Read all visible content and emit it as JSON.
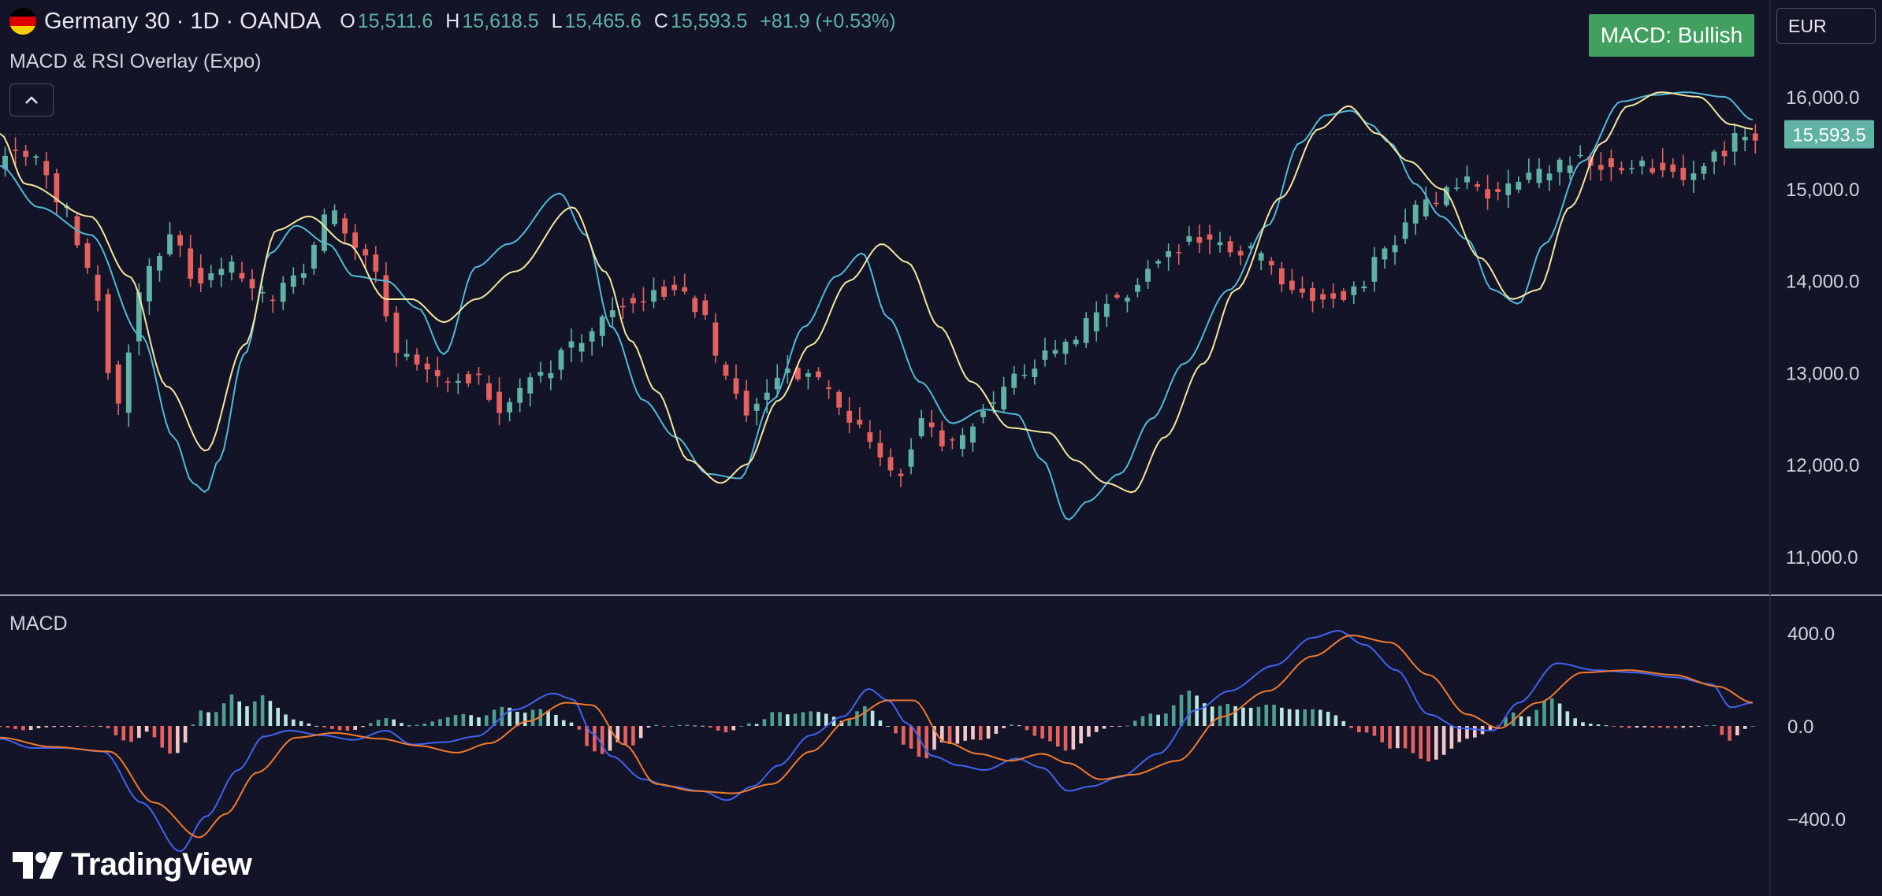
{
  "header": {
    "symbol": "Germany 30 · 1D · OANDA",
    "open_label": "O",
    "open": "15,511.6",
    "high_label": "H",
    "high": "15,618.5",
    "low_label": "L",
    "low": "15,465.6",
    "close_label": "C",
    "close": "15,593.5",
    "change": "+81.9 (+0.53%)",
    "flag_colors": [
      "#000000",
      "#dd0000",
      "#ffce00"
    ]
  },
  "indicator_name": "MACD & RSI Overlay (Expo)",
  "collapse_icon": "chevron-up-icon",
  "macd_label": "MACD",
  "status_badge": "MACD: Bullish",
  "currency": "EUR",
  "price_tag": "15,593.5",
  "brand": "TradingView",
  "colors": {
    "background": "#131427",
    "up": "#5fb2a4",
    "down": "#e4615f",
    "rsi_fast": "#52b9d8",
    "rsi_slow": "#f5e6a0",
    "macd_line": "#3f63f0",
    "signal_line": "#f07a2e",
    "hist_up_strong": "#4f9e8f",
    "hist_up_weak": "#b9e6dd",
    "hist_down_strong": "#e4615f",
    "hist_down_weak": "#f5c6c8",
    "badge": "#41a05f",
    "price_tag_bg": "#5fb2a4"
  },
  "chart_data": [
    {
      "type": "candlestick",
      "title": "Germany 30 · 1D · OANDA",
      "y_ticks": [
        "16,000.0",
        "15,000.0",
        "14,000.0",
        "13,000.0",
        "12,000.0",
        "11,000.0"
      ],
      "y_tick_values": [
        16000,
        15000,
        14000,
        13000,
        12000,
        11000
      ],
      "ylim": [
        10600,
        16700
      ],
      "close_anchors": [
        [
          0,
          15150
        ],
        [
          10,
          15450
        ],
        [
          28,
          15350
        ],
        [
          55,
          14750
        ],
        [
          75,
          14100
        ],
        [
          95,
          12600
        ],
        [
          105,
          13300
        ],
        [
          115,
          14000
        ],
        [
          135,
          14450
        ],
        [
          160,
          14000
        ],
        [
          185,
          14150
        ],
        [
          210,
          13800
        ],
        [
          240,
          14100
        ],
        [
          260,
          14700
        ],
        [
          290,
          14300
        ],
        [
          315,
          13150
        ],
        [
          345,
          12900
        ],
        [
          370,
          12950
        ],
        [
          395,
          12600
        ],
        [
          420,
          12950
        ],
        [
          450,
          13300
        ],
        [
          490,
          13750
        ],
        [
          520,
          13900
        ],
        [
          545,
          13750
        ],
        [
          565,
          13000
        ],
        [
          585,
          12600
        ],
        [
          615,
          13050
        ],
        [
          640,
          12900
        ],
        [
          660,
          12550
        ],
        [
          680,
          12250
        ],
        [
          700,
          11850
        ],
        [
          720,
          12450
        ],
        [
          745,
          12200
        ],
        [
          770,
          12600
        ],
        [
          790,
          12900
        ],
        [
          830,
          13300
        ],
        [
          870,
          13800
        ],
        [
          910,
          14300
        ],
        [
          935,
          14450
        ],
        [
          965,
          14350
        ],
        [
          990,
          14200
        ],
        [
          1010,
          13900
        ],
        [
          1030,
          13850
        ],
        [
          1050,
          13800
        ],
        [
          1080,
          14300
        ],
        [
          1110,
          14800
        ],
        [
          1140,
          15050
        ],
        [
          1170,
          14950
        ],
        [
          1200,
          15150
        ],
        [
          1230,
          15300
        ],
        [
          1260,
          15250
        ],
        [
          1290,
          15250
        ],
        [
          1317,
          15150
        ],
        [
          1340,
          15420
        ],
        [
          1362,
          15593.5
        ]
      ],
      "rsi_fast_anchors": [
        [
          0,
          15250
        ],
        [
          30,
          14800
        ],
        [
          70,
          14500
        ],
        [
          110,
          13400
        ],
        [
          135,
          12300
        ],
        [
          150,
          11800
        ],
        [
          160,
          11700
        ],
        [
          170,
          12050
        ],
        [
          190,
          13200
        ],
        [
          210,
          14300
        ],
        [
          230,
          14600
        ],
        [
          255,
          14400
        ],
        [
          275,
          14050
        ],
        [
          300,
          14000
        ],
        [
          325,
          13700
        ],
        [
          345,
          13200
        ],
        [
          370,
          14150
        ],
        [
          395,
          14400
        ],
        [
          435,
          14950
        ],
        [
          455,
          14500
        ],
        [
          475,
          13500
        ],
        [
          500,
          12700
        ],
        [
          525,
          12300
        ],
        [
          550,
          11900
        ],
        [
          575,
          11850
        ],
        [
          600,
          12700
        ],
        [
          625,
          13500
        ],
        [
          650,
          14050
        ],
        [
          670,
          14300
        ],
        [
          690,
          13600
        ],
        [
          715,
          12900
        ],
        [
          740,
          12450
        ],
        [
          765,
          12600
        ],
        [
          790,
          12550
        ],
        [
          810,
          12050
        ],
        [
          830,
          11400
        ],
        [
          845,
          11600
        ],
        [
          870,
          11900
        ],
        [
          895,
          12500
        ],
        [
          920,
          13100
        ],
        [
          955,
          13900
        ],
        [
          985,
          14600
        ],
        [
          1010,
          15500
        ],
        [
          1030,
          15800
        ],
        [
          1050,
          15850
        ],
        [
          1065,
          15700
        ],
        [
          1080,
          15500
        ],
        [
          1100,
          15050
        ],
        [
          1120,
          14700
        ],
        [
          1140,
          14450
        ],
        [
          1160,
          13900
        ],
        [
          1180,
          13750
        ],
        [
          1200,
          14400
        ],
        [
          1230,
          15300
        ],
        [
          1260,
          15950
        ],
        [
          1285,
          16020
        ],
        [
          1310,
          16050
        ],
        [
          1340,
          16000
        ],
        [
          1362,
          15750
        ]
      ],
      "rsi_slow_anchors": [
        [
          0,
          15600
        ],
        [
          20,
          15050
        ],
        [
          70,
          14700
        ],
        [
          100,
          14050
        ],
        [
          130,
          12850
        ],
        [
          160,
          12150
        ],
        [
          190,
          13300
        ],
        [
          215,
          14550
        ],
        [
          240,
          14700
        ],
        [
          270,
          14400
        ],
        [
          300,
          13800
        ],
        [
          320,
          13800
        ],
        [
          345,
          13550
        ],
        [
          370,
          13800
        ],
        [
          400,
          14100
        ],
        [
          445,
          14800
        ],
        [
          470,
          14100
        ],
        [
          490,
          13350
        ],
        [
          510,
          12800
        ],
        [
          535,
          12050
        ],
        [
          560,
          11800
        ],
        [
          580,
          12000
        ],
        [
          605,
          12700
        ],
        [
          630,
          13300
        ],
        [
          660,
          14000
        ],
        [
          685,
          14400
        ],
        [
          705,
          14200
        ],
        [
          730,
          13500
        ],
        [
          755,
          12900
        ],
        [
          785,
          12400
        ],
        [
          815,
          12350
        ],
        [
          835,
          12050
        ],
        [
          860,
          11800
        ],
        [
          880,
          11700
        ],
        [
          905,
          12300
        ],
        [
          935,
          13100
        ],
        [
          960,
          13900
        ],
        [
          995,
          14900
        ],
        [
          1025,
          15650
        ],
        [
          1048,
          15900
        ],
        [
          1070,
          15600
        ],
        [
          1095,
          15300
        ],
        [
          1120,
          15000
        ],
        [
          1150,
          14250
        ],
        [
          1175,
          13800
        ],
        [
          1195,
          13900
        ],
        [
          1220,
          14800
        ],
        [
          1245,
          15500
        ],
        [
          1265,
          15900
        ],
        [
          1290,
          16050
        ],
        [
          1320,
          16000
        ],
        [
          1345,
          15700
        ],
        [
          1362,
          15650
        ]
      ],
      "x_count": 1363
    },
    {
      "type": "macd",
      "title": "MACD",
      "y_ticks": [
        "400.0",
        "0.0",
        "−400.0"
      ],
      "y_tick_values": [
        400,
        0,
        -400
      ],
      "ylim": [
        -600,
        520
      ],
      "macd_anchors": [
        [
          0,
          -55
        ],
        [
          25,
          -95
        ],
        [
          50,
          -95
        ],
        [
          80,
          -110
        ],
        [
          110,
          -330
        ],
        [
          140,
          -540
        ],
        [
          160,
          -390
        ],
        [
          185,
          -190
        ],
        [
          205,
          -45
        ],
        [
          225,
          -20
        ],
        [
          250,
          -40
        ],
        [
          275,
          -60
        ],
        [
          300,
          -20
        ],
        [
          320,
          -80
        ],
        [
          345,
          -70
        ],
        [
          370,
          -45
        ],
        [
          400,
          70
        ],
        [
          430,
          140
        ],
        [
          445,
          115
        ],
        [
          460,
          -30
        ],
        [
          475,
          -130
        ],
        [
          500,
          -230
        ],
        [
          520,
          -260
        ],
        [
          545,
          -280
        ],
        [
          565,
          -320
        ],
        [
          585,
          -260
        ],
        [
          605,
          -170
        ],
        [
          630,
          -40
        ],
        [
          655,
          40
        ],
        [
          675,
          160
        ],
        [
          690,
          110
        ],
        [
          705,
          10
        ],
        [
          725,
          -130
        ],
        [
          745,
          -170
        ],
        [
          765,
          -190
        ],
        [
          790,
          -140
        ],
        [
          810,
          -180
        ],
        [
          830,
          -280
        ],
        [
          848,
          -260
        ],
        [
          870,
          -220
        ],
        [
          900,
          -120
        ],
        [
          930,
          70
        ],
        [
          955,
          150
        ],
        [
          990,
          260
        ],
        [
          1020,
          380
        ],
        [
          1040,
          410
        ],
        [
          1060,
          350
        ],
        [
          1085,
          240
        ],
        [
          1110,
          50
        ],
        [
          1135,
          -10
        ],
        [
          1160,
          -20
        ],
        [
          1180,
          100
        ],
        [
          1210,
          270
        ],
        [
          1240,
          240
        ],
        [
          1270,
          230
        ],
        [
          1300,
          210
        ],
        [
          1330,
          180
        ],
        [
          1345,
          80
        ],
        [
          1362,
          100
        ]
      ],
      "signal_anchors": [
        [
          0,
          -50
        ],
        [
          40,
          -90
        ],
        [
          85,
          -110
        ],
        [
          120,
          -330
        ],
        [
          155,
          -480
        ],
        [
          175,
          -380
        ],
        [
          200,
          -200
        ],
        [
          230,
          -50
        ],
        [
          260,
          -30
        ],
        [
          295,
          -55
        ],
        [
          325,
          -85
        ],
        [
          355,
          -115
        ],
        [
          380,
          -75
        ],
        [
          410,
          20
        ],
        [
          440,
          100
        ],
        [
          460,
          90
        ],
        [
          485,
          -80
        ],
        [
          510,
          -250
        ],
        [
          540,
          -280
        ],
        [
          570,
          -290
        ],
        [
          600,
          -250
        ],
        [
          630,
          -110
        ],
        [
          660,
          30
        ],
        [
          690,
          110
        ],
        [
          710,
          110
        ],
        [
          735,
          -70
        ],
        [
          760,
          -120
        ],
        [
          785,
          -150
        ],
        [
          810,
          -120
        ],
        [
          830,
          -160
        ],
        [
          855,
          -230
        ],
        [
          880,
          -210
        ],
        [
          915,
          -150
        ],
        [
          950,
          40
        ],
        [
          985,
          150
        ],
        [
          1020,
          300
        ],
        [
          1050,
          390
        ],
        [
          1080,
          360
        ],
        [
          1110,
          220
        ],
        [
          1140,
          50
        ],
        [
          1165,
          -10
        ],
        [
          1195,
          100
        ],
        [
          1230,
          230
        ],
        [
          1265,
          240
        ],
        [
          1300,
          220
        ],
        [
          1335,
          170
        ],
        [
          1362,
          100
        ]
      ]
    }
  ]
}
